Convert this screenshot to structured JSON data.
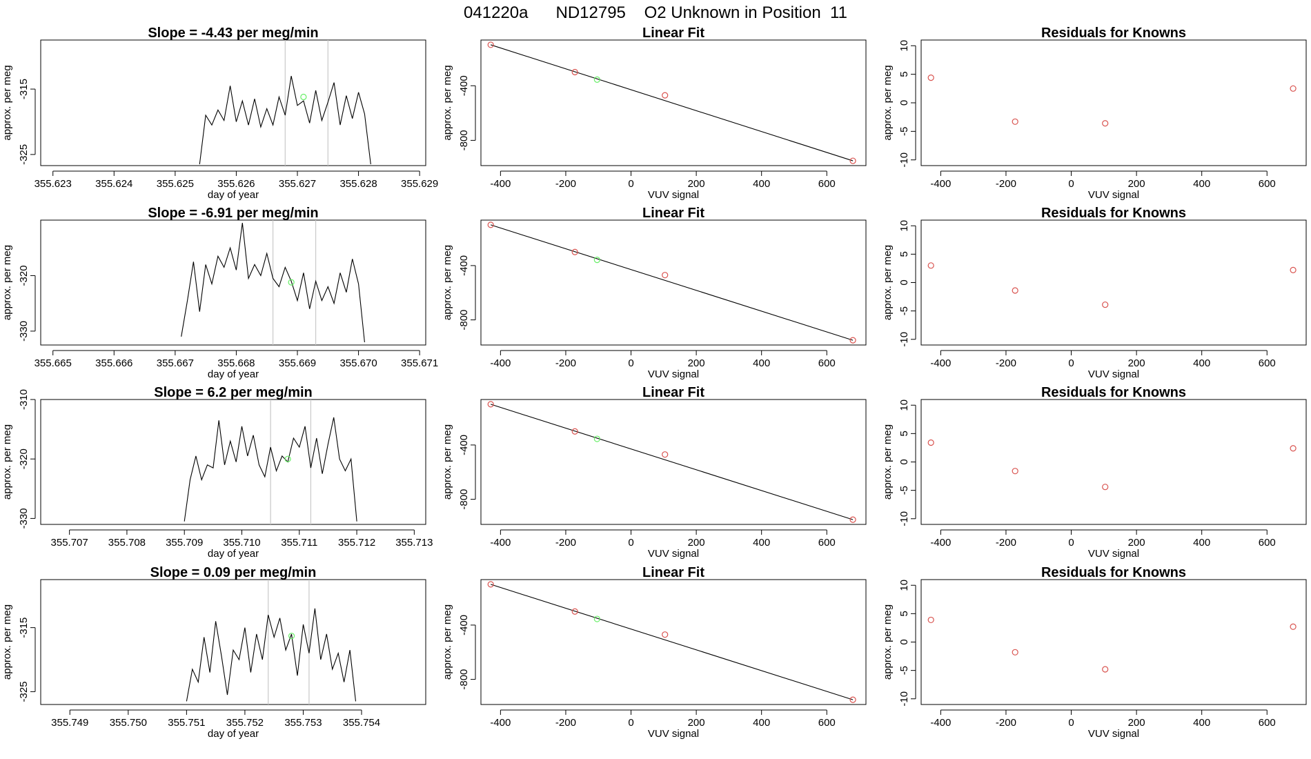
{
  "page": {
    "title": "041220a      ND12795    O2 Unknown in Position  11"
  },
  "colors": {
    "line": "#000000",
    "frame": "#000000",
    "marker_lines": "#c8c8c8",
    "unknown_point": "#66ee66",
    "known_point": "#d9534f"
  },
  "chart_data": [
    {
      "type": "line",
      "row": 0,
      "column": 0,
      "title": "Slope =  -4.43  per meg/min",
      "xlabel": "day of year",
      "ylabel": "approx. per meg",
      "xlim": [
        355.6228,
        355.6291
      ],
      "ylim": [
        -326.7,
        -307.5
      ],
      "xticks": [
        355.623,
        355.624,
        355.625,
        355.626,
        355.627,
        355.628,
        355.629
      ],
      "xtick_labels": [
        "355.623",
        "355.624",
        "355.625",
        "355.626",
        "355.627",
        "355.628",
        "355.629"
      ],
      "yticks": [
        -325,
        -315
      ],
      "ytick_labels": [
        "-325",
        "-315"
      ],
      "vlines": [
        355.6268,
        355.6275
      ],
      "unknown_point": {
        "x": 355.6271,
        "y": -316.2
      },
      "x": [
        355.6254,
        355.6255,
        355.6256,
        355.6257,
        355.6258,
        355.6259,
        355.626,
        355.6261,
        355.6262,
        355.6263,
        355.6264,
        355.6265,
        355.6266,
        355.6267,
        355.6268,
        355.6269,
        355.627,
        355.6271,
        355.6272,
        355.6273,
        355.6274,
        355.6275,
        355.6276,
        355.6277,
        355.6278,
        355.6279,
        355.628,
        355.6281,
        355.6282
      ],
      "y": [
        -326.5,
        -319.0,
        -320.5,
        -318.2,
        -319.8,
        -314.5,
        -320.0,
        -316.8,
        -320.5,
        -316.5,
        -320.8,
        -318.0,
        -320.5,
        -316.2,
        -319.0,
        -313.0,
        -317.5,
        -316.8,
        -320.2,
        -315.2,
        -319.8,
        -317.0,
        -314.0,
        -320.5,
        -316.0,
        -319.5,
        -315.5,
        -318.8,
        -326.5
      ]
    },
    {
      "type": "line",
      "row": 1,
      "column": 0,
      "title": "Slope =  -6.91  per meg/min",
      "xlabel": "day of year",
      "ylabel": "approx. per meg",
      "xlim": [
        355.6648,
        355.6711
      ],
      "ylim": [
        -332.5,
        -310.0
      ],
      "xticks": [
        355.665,
        355.666,
        355.667,
        355.668,
        355.669,
        355.67,
        355.671
      ],
      "xtick_labels": [
        "355.665",
        "355.666",
        "355.667",
        "355.668",
        "355.669",
        "355.670",
        "355.671"
      ],
      "yticks": [
        -330,
        -320
      ],
      "ytick_labels": [
        "-330",
        "-320"
      ],
      "vlines": [
        355.6686,
        355.6693
      ],
      "unknown_point": {
        "x": 355.6689,
        "y": -321.2
      },
      "x": [
        355.6671,
        355.6672,
        355.6673,
        355.6674,
        355.6675,
        355.6676,
        355.6677,
        355.6678,
        355.6679,
        355.668,
        355.6681,
        355.6682,
        355.6683,
        355.6684,
        355.6685,
        355.6686,
        355.6687,
        355.6688,
        355.6689,
        355.669,
        355.6691,
        355.6692,
        355.6693,
        355.6694,
        355.6695,
        355.6696,
        355.6697,
        355.6698,
        355.6699,
        355.67,
        355.6701
      ],
      "y": [
        -331.0,
        -324.5,
        -317.5,
        -326.5,
        -318.0,
        -321.5,
        -316.5,
        -318.5,
        -315.0,
        -319.0,
        -310.5,
        -320.5,
        -318.0,
        -320.0,
        -316.0,
        -320.5,
        -322.0,
        -318.5,
        -321.0,
        -324.5,
        -319.5,
        -326.0,
        -321.0,
        -324.5,
        -322.0,
        -325.0,
        -319.5,
        -323.0,
        -317.0,
        -321.5,
        -332.0
      ]
    },
    {
      "type": "line",
      "row": 2,
      "column": 0,
      "title": "Slope =  6.2  per meg/min",
      "xlabel": "day of year",
      "ylabel": "approx. per meg",
      "xlim": [
        355.7065,
        355.7132
      ],
      "ylim": [
        -331.0,
        -310.0
      ],
      "xticks": [
        355.707,
        355.708,
        355.709,
        355.71,
        355.711,
        355.712,
        355.713
      ],
      "xtick_labels": [
        "355.707",
        "355.708",
        "355.709",
        "355.710",
        "355.711",
        "355.712",
        "355.713"
      ],
      "yticks": [
        -330,
        -320,
        -310
      ],
      "ytick_labels": [
        "-330",
        "-320",
        "-310"
      ],
      "vlines": [
        355.7105,
        355.7112
      ],
      "unknown_point": {
        "x": 355.7108,
        "y": -320.0
      },
      "x": [
        355.709,
        355.7091,
        355.7092,
        355.7093,
        355.7094,
        355.7095,
        355.7096,
        355.7097,
        355.7098,
        355.7099,
        355.71,
        355.7101,
        355.7102,
        355.7103,
        355.7104,
        355.7105,
        355.7106,
        355.7107,
        355.7108,
        355.7109,
        355.711,
        355.7111,
        355.7112,
        355.7113,
        355.7114,
        355.7115,
        355.7116,
        355.7117,
        355.7118,
        355.7119,
        355.712
      ],
      "y": [
        -330.5,
        -323.5,
        -319.5,
        -323.5,
        -321.0,
        -321.5,
        -313.5,
        -321.0,
        -317.0,
        -320.5,
        -314.5,
        -319.5,
        -316.0,
        -321.0,
        -323.0,
        -318.0,
        -322.0,
        -319.5,
        -320.5,
        -316.5,
        -318.0,
        -314.5,
        -321.5,
        -316.5,
        -322.5,
        -317.5,
        -313.0,
        -320.0,
        -322.0,
        -320.0,
        -330.5
      ]
    },
    {
      "type": "line",
      "row": 3,
      "column": 0,
      "title": "Slope =  0.09  per meg/min",
      "xlabel": "day of year",
      "ylabel": "approx. per meg",
      "xlim": [
        355.7485,
        355.7551
      ],
      "ylim": [
        -327.0,
        -307.5
      ],
      "xticks": [
        355.749,
        355.75,
        355.751,
        355.752,
        355.753,
        355.754
      ],
      "xtick_labels": [
        "355.749",
        "355.750",
        "355.751",
        "355.752",
        "355.753",
        "355.754"
      ],
      "yticks": [
        -325,
        -315
      ],
      "ytick_labels": [
        "-325",
        "-315"
      ],
      "vlines": [
        355.7524,
        355.7531
      ],
      "unknown_point": {
        "x": 355.7528,
        "y": -316.3
      },
      "x": [
        355.751,
        355.7511,
        355.7512,
        355.7513,
        355.7514,
        355.7515,
        355.7516,
        355.7517,
        355.7518,
        355.7519,
        355.752,
        355.7521,
        355.7522,
        355.7523,
        355.7524,
        355.7525,
        355.7526,
        355.7527,
        355.7528,
        355.7529,
        355.753,
        355.7531,
        355.7532,
        355.7533,
        355.7534,
        355.7535,
        355.7536,
        355.7537,
        355.7538,
        355.7539
      ],
      "y": [
        -326.5,
        -321.5,
        -323.5,
        -316.5,
        -322.0,
        -314.0,
        -319.5,
        -325.5,
        -318.5,
        -320.0,
        -315.0,
        -322.0,
        -316.0,
        -320.0,
        -313.0,
        -316.5,
        -313.5,
        -318.5,
        -316.0,
        -322.5,
        -314.5,
        -319.0,
        -312.0,
        -320.0,
        -316.0,
        -321.5,
        -319.0,
        -323.5,
        -318.5,
        -326.5
      ]
    },
    {
      "type": "scatter",
      "row": 0,
      "column": 1,
      "title": "Linear Fit",
      "xlabel": "VUV signal",
      "ylabel": "approx. per meg",
      "xlim": [
        -460,
        720
      ],
      "ylim": [
        -985,
        -65
      ],
      "xticks": [
        -400,
        -200,
        0,
        200,
        400,
        600
      ],
      "xtick_labels": [
        "-400",
        "-200",
        "0",
        "200",
        "400",
        "600"
      ],
      "yticks": [
        -800,
        -400
      ],
      "ytick_labels": [
        "-800",
        "-400"
      ],
      "fit_line": {
        "x": [
          -430,
          680
        ],
        "y": [
          -100,
          -950
        ]
      },
      "known_points": {
        "x": [
          -430,
          -172,
          104,
          680
        ],
        "y": [
          -100,
          -300,
          -470,
          -950
        ]
      },
      "unknown_point": {
        "x": -104,
        "y": -355
      }
    },
    {
      "type": "scatter",
      "row": 1,
      "column": 1,
      "title": "Linear Fit",
      "xlabel": "VUV signal",
      "ylabel": "approx. per meg",
      "xlim": [
        -460,
        720
      ],
      "ylim": [
        -985,
        -65
      ],
      "xticks": [
        -400,
        -200,
        0,
        200,
        400,
        600
      ],
      "xtick_labels": [
        "-400",
        "-200",
        "0",
        "200",
        "400",
        "600"
      ],
      "yticks": [
        -800,
        -400
      ],
      "ytick_labels": [
        "-800",
        "-400"
      ],
      "fit_line": {
        "x": [
          -430,
          680
        ],
        "y": [
          -100,
          -950
        ]
      },
      "known_points": {
        "x": [
          -430,
          -172,
          104,
          680
        ],
        "y": [
          -100,
          -300,
          -470,
          -950
        ]
      },
      "unknown_point": {
        "x": -104,
        "y": -358
      }
    },
    {
      "type": "scatter",
      "row": 2,
      "column": 1,
      "title": "Linear Fit",
      "xlabel": "VUV signal",
      "ylabel": "approx. per meg",
      "xlim": [
        -460,
        720
      ],
      "ylim": [
        -985,
        -65
      ],
      "xticks": [
        -400,
        -200,
        0,
        200,
        400,
        600
      ],
      "xtick_labels": [
        "-400",
        "-200",
        "0",
        "200",
        "400",
        "600"
      ],
      "yticks": [
        -800,
        -400
      ],
      "ytick_labels": [
        "-800",
        "-400"
      ],
      "fit_line": {
        "x": [
          -430,
          680
        ],
        "y": [
          -100,
          -950
        ]
      },
      "known_points": {
        "x": [
          -430,
          -172,
          104,
          680
        ],
        "y": [
          -100,
          -300,
          -470,
          -950
        ]
      },
      "unknown_point": {
        "x": -104,
        "y": -355
      }
    },
    {
      "type": "scatter",
      "row": 3,
      "column": 1,
      "title": "Linear Fit",
      "xlabel": "VUV signal",
      "ylabel": "approx. per meg",
      "xlim": [
        -460,
        720
      ],
      "ylim": [
        -985,
        -65
      ],
      "xticks": [
        -400,
        -200,
        0,
        200,
        400,
        600
      ],
      "xtick_labels": [
        "-400",
        "-200",
        "0",
        "200",
        "400",
        "600"
      ],
      "yticks": [
        -800,
        -400
      ],
      "ytick_labels": [
        "-800",
        "-400"
      ],
      "fit_line": {
        "x": [
          -430,
          680
        ],
        "y": [
          -100,
          -950
        ]
      },
      "known_points": {
        "x": [
          -430,
          -172,
          104,
          680
        ],
        "y": [
          -100,
          -300,
          -470,
          -950
        ]
      },
      "unknown_point": {
        "x": -104,
        "y": -355
      }
    },
    {
      "type": "scatter",
      "row": 0,
      "column": 2,
      "title": "Residuals for Knowns",
      "xlabel": "VUV signal",
      "ylabel": "approx. per meg",
      "xlim": [
        -460,
        720
      ],
      "ylim": [
        -11,
        11
      ],
      "xticks": [
        -400,
        -200,
        0,
        200,
        400,
        600
      ],
      "xtick_labels": [
        "-400",
        "-200",
        "0",
        "200",
        "400",
        "600"
      ],
      "yticks": [
        -10,
        -5,
        0,
        5,
        10
      ],
      "ytick_labels": [
        "-10",
        "-5",
        "0",
        "5",
        "10"
      ],
      "known_points": {
        "x": [
          -430,
          -172,
          104,
          680
        ],
        "y": [
          4.4,
          -3.3,
          -3.6,
          2.5
        ]
      }
    },
    {
      "type": "scatter",
      "row": 1,
      "column": 2,
      "title": "Residuals for Knowns",
      "xlabel": "VUV signal",
      "ylabel": "approx. per meg",
      "xlim": [
        -460,
        720
      ],
      "ylim": [
        -11,
        11
      ],
      "xticks": [
        -400,
        -200,
        0,
        200,
        400,
        600
      ],
      "xtick_labels": [
        "-400",
        "-200",
        "0",
        "200",
        "400",
        "600"
      ],
      "yticks": [
        -10,
        -5,
        0,
        5,
        10
      ],
      "ytick_labels": [
        "-10",
        "-5",
        "0",
        "5",
        "10"
      ],
      "known_points": {
        "x": [
          -430,
          -172,
          104,
          680
        ],
        "y": [
          3.0,
          -1.4,
          -3.9,
          2.2
        ]
      }
    },
    {
      "type": "scatter",
      "row": 2,
      "column": 2,
      "title": "Residuals for Knowns",
      "xlabel": "VUV signal",
      "ylabel": "approx. per meg",
      "xlim": [
        -460,
        720
      ],
      "ylim": [
        -11,
        11
      ],
      "xticks": [
        -400,
        -200,
        0,
        200,
        400,
        600
      ],
      "xtick_labels": [
        "-400",
        "-200",
        "0",
        "200",
        "400",
        "600"
      ],
      "yticks": [
        -10,
        -5,
        0,
        5,
        10
      ],
      "ytick_labels": [
        "-10",
        "-5",
        "0",
        "5",
        "10"
      ],
      "known_points": {
        "x": [
          -430,
          -172,
          104,
          680
        ],
        "y": [
          3.4,
          -1.6,
          -4.4,
          2.4
        ]
      }
    },
    {
      "type": "scatter",
      "row": 3,
      "column": 2,
      "title": "Residuals for Knowns",
      "xlabel": "VUV signal",
      "ylabel": "approx. per meg",
      "xlim": [
        -460,
        720
      ],
      "ylim": [
        -11,
        11
      ],
      "xticks": [
        -400,
        -200,
        0,
        200,
        400,
        600
      ],
      "xtick_labels": [
        "-400",
        "-200",
        "0",
        "200",
        "400",
        "600"
      ],
      "yticks": [
        -10,
        -5,
        0,
        5,
        10
      ],
      "ytick_labels": [
        "-10",
        "-5",
        "0",
        "5",
        "10"
      ],
      "known_points": {
        "x": [
          -430,
          -172,
          104,
          680
        ],
        "y": [
          3.9,
          -1.8,
          -4.8,
          2.7
        ]
      }
    }
  ]
}
